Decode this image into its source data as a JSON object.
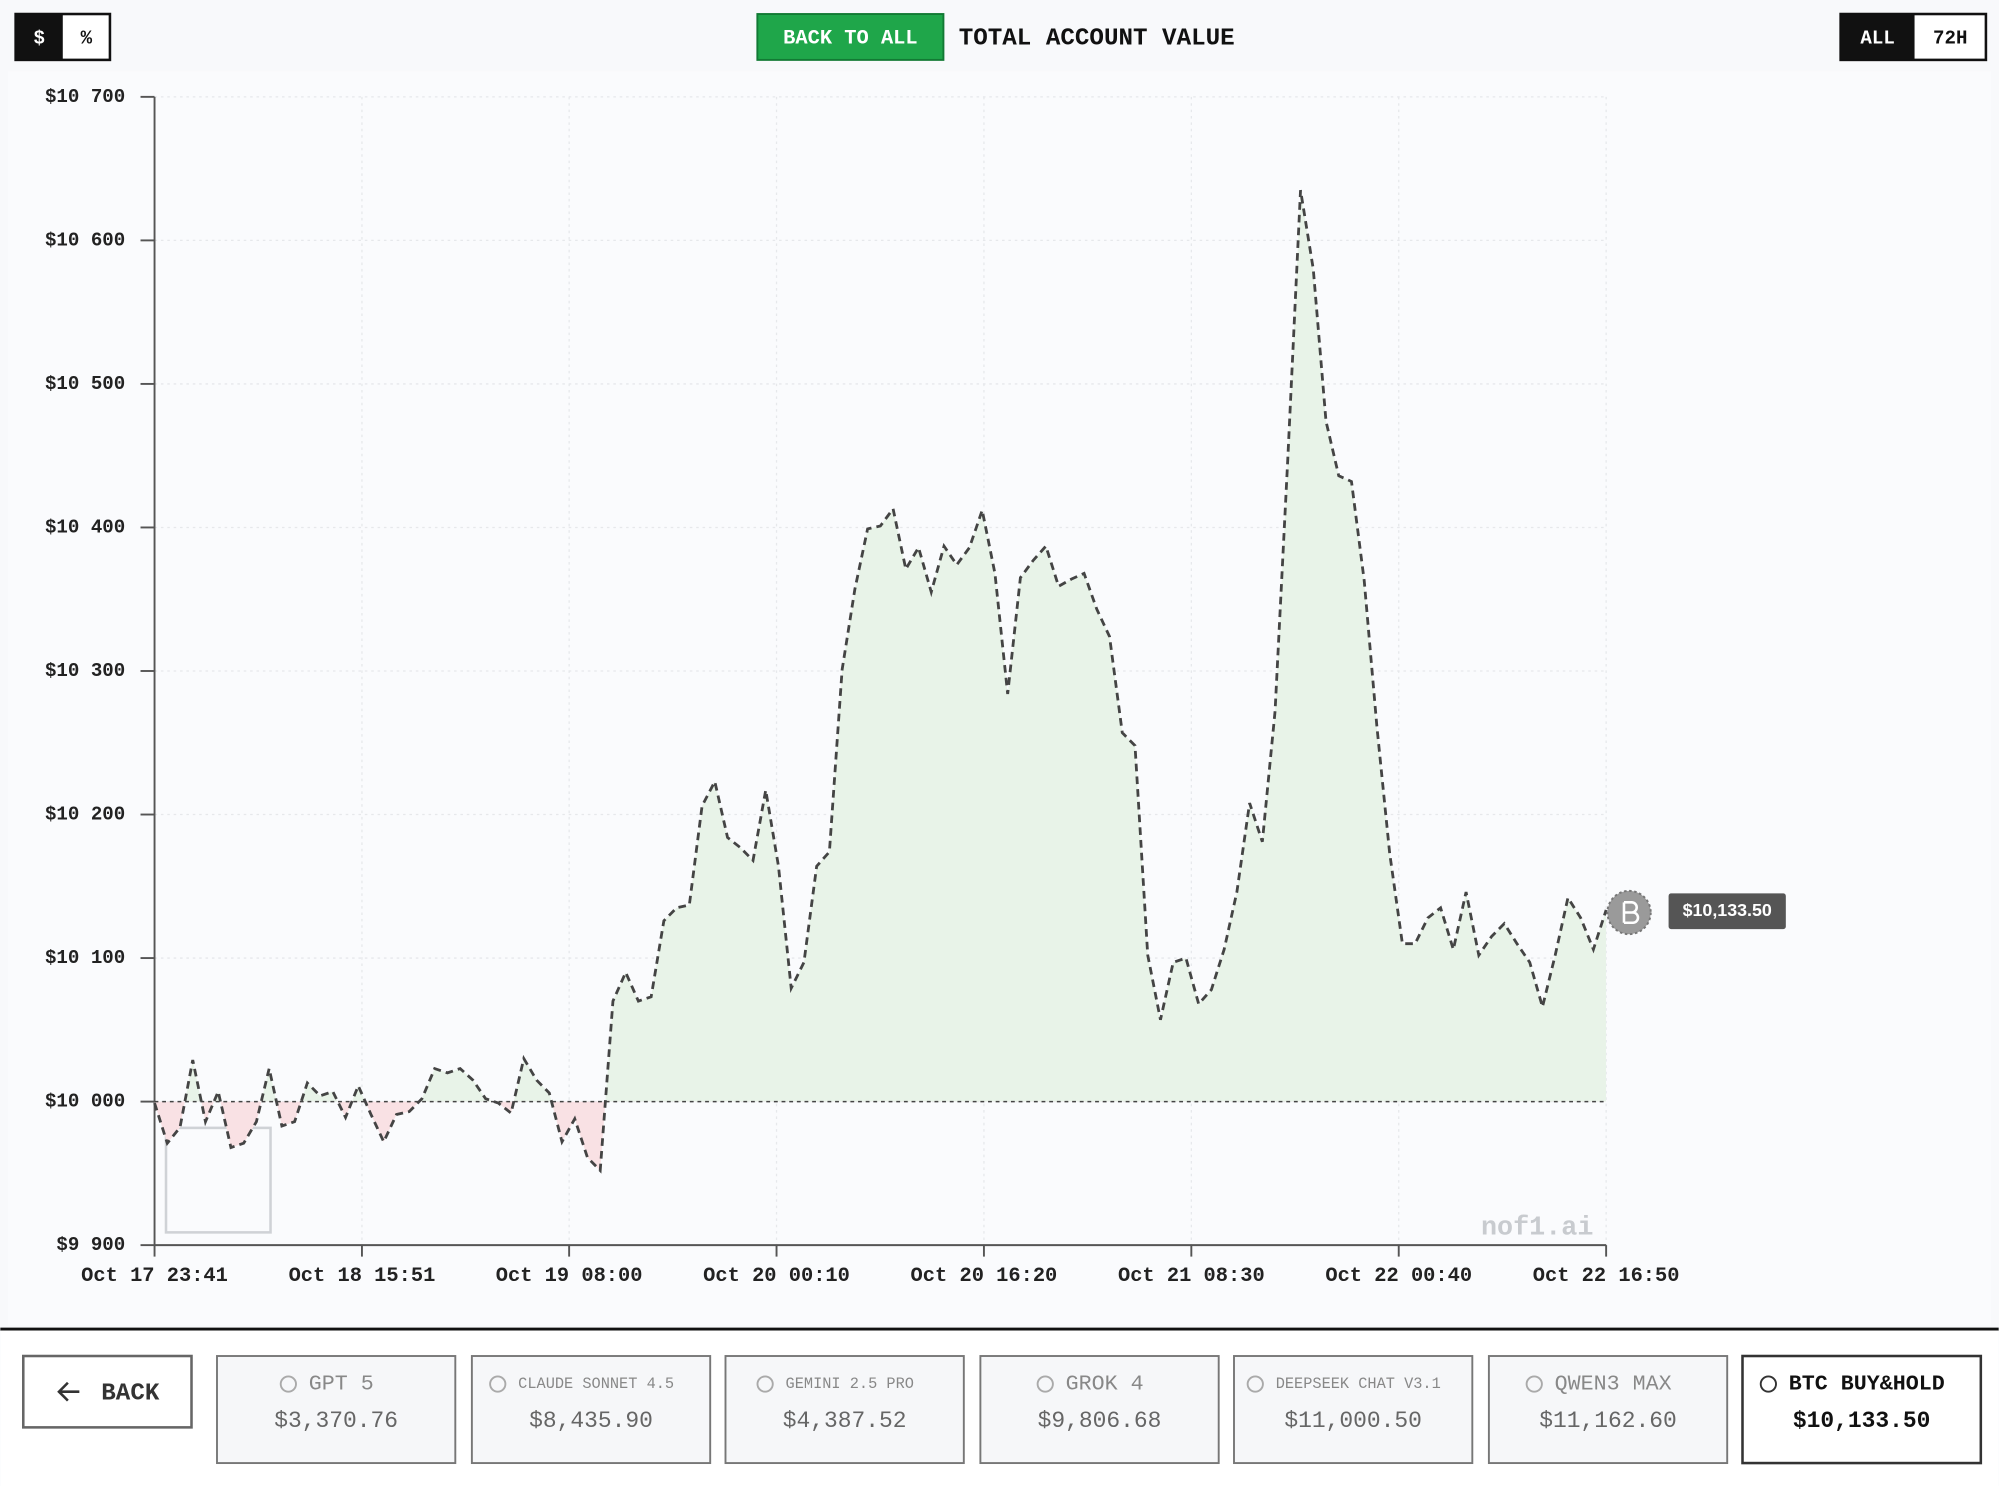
{
  "toggles": {
    "unit": [
      "$",
      "%"
    ],
    "range": [
      "ALL",
      "72H"
    ]
  },
  "back_to_all": "BACK TO ALL",
  "back": "BACK",
  "watermark": "nof1.ai",
  "chart_data": {
    "type": "line",
    "title": "TOTAL ACCOUNT VALUE",
    "xlim": [
      "Oct 17 23:41",
      "Oct 22 16:50"
    ],
    "xticks": [
      "Oct 17 23:41",
      "Oct 18 15:51",
      "Oct 19 08:00",
      "Oct 20 00:10",
      "Oct 20 16:20",
      "Oct 21 08:30",
      "Oct 22 00:40",
      "Oct 22 16:50"
    ],
    "ylim": [
      9900,
      10700
    ],
    "yticks": [
      {
        "value": 9900,
        "label": "$9 900"
      },
      {
        "value": 10000,
        "label": "$10 000"
      },
      {
        "value": 10100,
        "label": "$10 100"
      },
      {
        "value": 10200,
        "label": "$10 200"
      },
      {
        "value": 10300,
        "label": "$10 300"
      },
      {
        "value": 10400,
        "label": "$10 400"
      },
      {
        "value": 10500,
        "label": "$10 500"
      },
      {
        "value": 10600,
        "label": "$10 600"
      },
      {
        "value": 10700,
        "label": "$10 700"
      }
    ],
    "baseline": 10000,
    "grid": true,
    "series": [
      {
        "color": "#444444",
        "above_color": "#e8f3e8",
        "below_color": "#f9e1e4",
        "values": [
          9999,
          9971,
          9982,
          10029,
          9986,
          10007,
          9968,
          9971,
          9986,
          10023,
          9983,
          9986,
          10013,
          10004,
          10007,
          9989,
          10011,
          9991,
          9972,
          9991,
          9993,
          10002,
          10023,
          10020,
          10023,
          10015,
          10002,
          9999,
          9992,
          10030,
          10015,
          10006,
          9972,
          9988,
          9961,
          9952,
          10070,
          10090,
          10070,
          10073,
          10126,
          10135,
          10137,
          10206,
          10223,
          10184,
          10177,
          10168,
          10217,
          10164,
          10079,
          10097,
          10164,
          10174,
          10301,
          10357,
          10399,
          10401,
          10413,
          10371,
          10386,
          10355,
          10387,
          10374,
          10386,
          10412,
          10368,
          10284,
          10365,
          10377,
          10387,
          10359,
          10364,
          10368,
          10343,
          10324,
          10257,
          10248,
          10102,
          10057,
          10097,
          10100,
          10068,
          10078,
          10106,
          10146,
          10208,
          10181,
          10272,
          10448,
          10635,
          10580,
          10474,
          10436,
          10432,
          10363,
          10261,
          10173,
          10110,
          10110,
          10128,
          10135,
          10106,
          10146,
          10102,
          10115,
          10124,
          10110,
          10097,
          10066,
          10102,
          10142,
          10128,
          10106,
          10133.5
        ],
        "last_value_label": "$10,133.50"
      }
    ]
  },
  "cards": [
    {
      "name": "GPT 5",
      "value": "$3,370.76"
    },
    {
      "name": "CLAUDE SONNET 4.5",
      "value": "$8,435.90"
    },
    {
      "name": "GEMINI 2.5 PRO",
      "value": "$4,387.52"
    },
    {
      "name": "GROK 4",
      "value": "$9,806.68"
    },
    {
      "name": "DEEPSEEK CHAT V3.1",
      "value": "$11,000.50"
    },
    {
      "name": "QWEN3 MAX",
      "value": "$11,162.60"
    },
    {
      "name": "BTC BUY&HOLD",
      "value": "$10,133.50",
      "active": true
    }
  ]
}
